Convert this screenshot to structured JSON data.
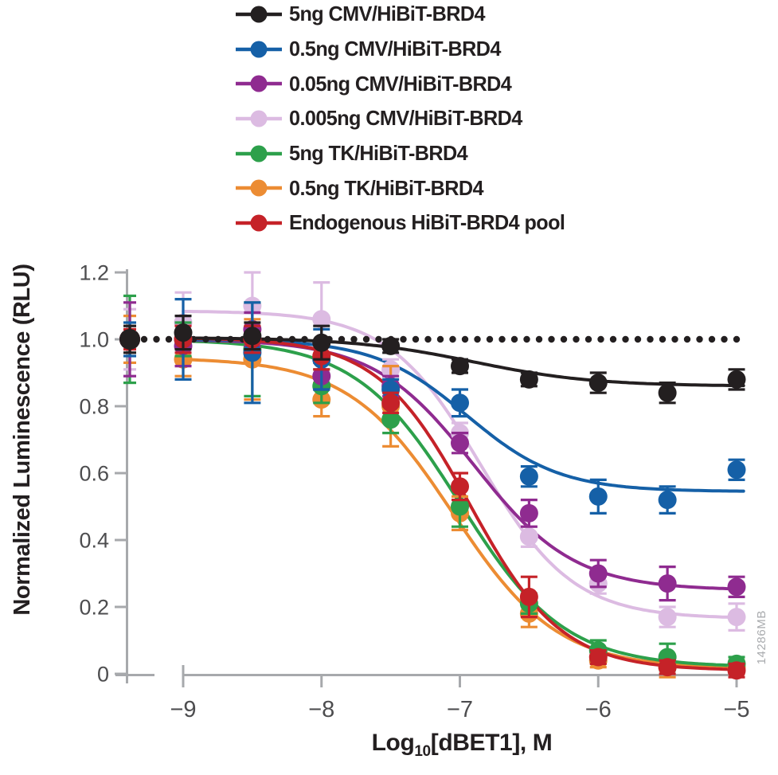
{
  "figure": {
    "watermark": "14286MB"
  },
  "chart_data": {
    "type": "scatter",
    "title": "",
    "ylabel": "Normalized Luminescence (RLU)",
    "xlabel": {
      "prefix": "Log",
      "sub": "10",
      "suffix": "[dBET1], M"
    },
    "legend_position": "top",
    "grid": false,
    "axis_color": "#a7a9ac",
    "tick_label_color": "#4d4d4f",
    "watermark_color": "#a9abae",
    "reference_line": {
      "y": 1.0,
      "style": "dotted",
      "color": "#231f20"
    },
    "x_axis": {
      "range": [
        -9,
        -5
      ],
      "ticks": [
        -9,
        -8,
        -7,
        -6,
        -5
      ],
      "labels": [
        "−9",
        "−8",
        "−7",
        "−6",
        "−5"
      ]
    },
    "y_axis": {
      "range": [
        0,
        1.2
      ],
      "ticks": [
        0,
        0.2,
        0.4,
        0.6,
        0.8,
        1.0,
        1.2
      ],
      "labels": [
        "0",
        "0.2",
        "0.4",
        "0.6",
        "0.8",
        "1.0",
        "1.2"
      ]
    },
    "x": [
      null,
      -9,
      -8.5,
      -8,
      -7.5,
      -7,
      -6.5,
      -6,
      -5.5,
      -5
    ],
    "draw_order": [
      3,
      5,
      4,
      2,
      1,
      6,
      0
    ],
    "series": [
      {
        "name": "5ng CMV/HiBiT-BRD4",
        "color": "#231f20",
        "values": [
          1.0,
          1.02,
          1.01,
          0.99,
          0.98,
          0.92,
          0.88,
          0.87,
          0.84,
          0.88
        ],
        "errors": [
          0.04,
          0.05,
          0.04,
          0.05,
          0.02,
          0.02,
          0.02,
          0.03,
          0.03,
          0.03
        ],
        "fit": {
          "top": 1.005,
          "bottom": 0.86,
          "logec50": -6.9,
          "hill": 1.0
        }
      },
      {
        "name": "0.5ng CMV/HiBiT-BRD4",
        "color": "#1560a7",
        "values": [
          1.0,
          1.0,
          0.96,
          0.94,
          0.85,
          0.81,
          0.59,
          0.53,
          0.52,
          0.61
        ],
        "errors": [
          0.05,
          0.12,
          0.15,
          0.09,
          0.03,
          0.04,
          0.03,
          0.05,
          0.04,
          0.03
        ],
        "fit": {
          "top": 1.0,
          "bottom": 0.545,
          "logec50": -6.95,
          "hill": 1.3
        }
      },
      {
        "name": "0.05ng CMV/HiBiT-BRD4",
        "color": "#8f2b90",
        "values": [
          1.0,
          0.98,
          1.03,
          0.89,
          0.86,
          0.69,
          0.48,
          0.3,
          0.27,
          0.26
        ],
        "errors": [
          0.11,
          0.06,
          0.05,
          0.04,
          0.03,
          0.03,
          0.04,
          0.04,
          0.05,
          0.03
        ],
        "fit": {
          "top": 1.0,
          "bottom": 0.25,
          "logec50": -6.9,
          "hill": 1.2
        }
      },
      {
        "name": "0.005ng CMV/HiBiT-BRD4",
        "color": "#dcbbe2",
        "values": [
          1.0,
          1.05,
          1.1,
          1.06,
          0.91,
          0.72,
          0.41,
          0.27,
          0.17,
          0.17
        ],
        "errors": [
          0.09,
          0.09,
          0.1,
          0.11,
          0.03,
          0.03,
          0.03,
          0.03,
          0.03,
          0.04
        ],
        "fit": {
          "top": 1.085,
          "bottom": 0.165,
          "logec50": -6.85,
          "hill": 1.3
        }
      },
      {
        "name": "5ng TK/HiBiT-BRD4",
        "color": "#2da04b",
        "values": [
          1.0,
          1.0,
          0.97,
          0.86,
          0.76,
          0.5,
          0.21,
          0.07,
          0.05,
          0.03
        ],
        "errors": [
          0.13,
          0.05,
          0.14,
          0.05,
          0.04,
          0.06,
          0.03,
          0.03,
          0.04,
          0.02
        ],
        "fit": {
          "top": 1.0,
          "bottom": 0.02,
          "logec50": -7.0,
          "hill": 1.15
        }
      },
      {
        "name": "0.5ng TK/HiBiT-BRD4",
        "color": "#ec8c33",
        "values": [
          1.0,
          0.94,
          0.94,
          0.82,
          0.8,
          0.48,
          0.18,
          0.04,
          0.02,
          0.02
        ],
        "errors": [
          0.07,
          0.05,
          0.12,
          0.05,
          0.12,
          0.05,
          0.04,
          0.02,
          0.03,
          0.02
        ],
        "fit": {
          "top": 0.945,
          "bottom": 0.015,
          "logec50": -7.05,
          "hill": 1.15
        }
      },
      {
        "name": "Endogenous HiBiT-BRD4 pool",
        "color": "#c52228",
        "values": [
          1.0,
          1.0,
          1.0,
          0.95,
          0.81,
          0.56,
          0.23,
          0.05,
          0.02,
          0.01
        ],
        "errors": [
          0.03,
          0.04,
          0.04,
          0.04,
          0.03,
          0.04,
          0.06,
          0.02,
          0.02,
          0.02
        ],
        "fit": {
          "top": 1.005,
          "bottom": 0.01,
          "logec50": -6.93,
          "hill": 1.3
        }
      }
    ]
  }
}
